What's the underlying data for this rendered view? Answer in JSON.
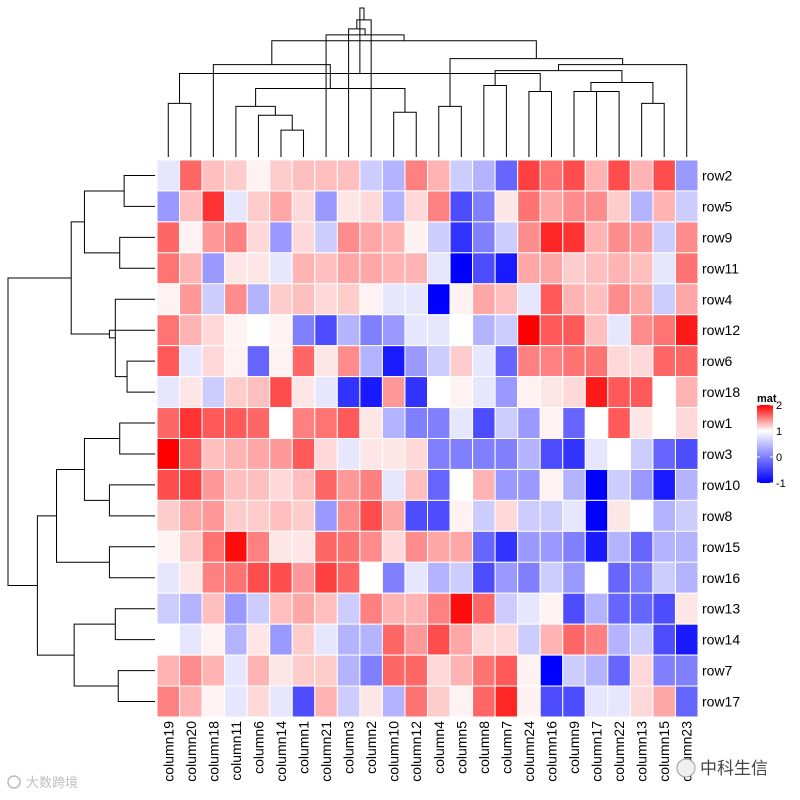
{
  "chart_data": {
    "type": "heatmap",
    "legend_title": "mat",
    "color_scale": {
      "low": -1,
      "mid": 0,
      "high": 2,
      "low_color": "#0000FF",
      "mid_color": "#FFFFFF",
      "high_color": "#FF0000",
      "ticks": [
        "2",
        "1",
        "0",
        "-1"
      ]
    },
    "columns": [
      "column19",
      "column20",
      "column18",
      "column11",
      "column6",
      "column14",
      "column1",
      "column21",
      "column3",
      "column2",
      "column10",
      "column12",
      "column4",
      "column5",
      "column8",
      "column7",
      "column24",
      "column16",
      "column9",
      "column17",
      "column22",
      "column13",
      "column15",
      "column23"
    ],
    "rows": [
      "row2",
      "row5",
      "row9",
      "row11",
      "row4",
      "row12",
      "row6",
      "row18",
      "row1",
      "row3",
      "row10",
      "row8",
      "row15",
      "row16",
      "row13",
      "row14",
      "row7",
      "row17"
    ],
    "values": [
      [
        -0.1,
        1.2,
        0.5,
        0.4,
        0.1,
        0.4,
        0.5,
        0.5,
        0.5,
        -0.2,
        -0.3,
        1.0,
        0.6,
        -0.2,
        -0.3,
        -0.6,
        1.5,
        1.1,
        1.4,
        0.6,
        1.4,
        0.6,
        1.4,
        -0.4
      ],
      [
        -0.4,
        0.5,
        1.6,
        -0.1,
        0.4,
        0.7,
        0.3,
        -0.4,
        0.2,
        0.3,
        -0.3,
        0.3,
        1.0,
        -0.7,
        -0.5,
        0.2,
        1.1,
        0.7,
        0.9,
        0.9,
        0.4,
        -0.3,
        0.6,
        -0.2
      ],
      [
        1.2,
        0.1,
        0.8,
        1.0,
        0.3,
        -0.4,
        0.3,
        -0.2,
        0.9,
        0.7,
        0.6,
        0.1,
        -0.2,
        -0.8,
        -0.5,
        -0.2,
        0.9,
        1.7,
        1.6,
        0.6,
        0.9,
        0.8,
        -0.2,
        0.9
      ],
      [
        1.1,
        0.6,
        -0.4,
        0.2,
        0.2,
        -0.1,
        0.6,
        0.5,
        0.7,
        0.7,
        0.6,
        0.6,
        -0.1,
        -1.0,
        -0.7,
        -0.9,
        0.7,
        0.7,
        0.4,
        0.5,
        0.6,
        0.5,
        -0.1,
        1.1
      ],
      [
        0.1,
        0.8,
        -0.2,
        0.9,
        -0.3,
        0.4,
        0.5,
        0.3,
        0.4,
        0.1,
        -0.1,
        -0.1,
        -1.0,
        0.1,
        0.7,
        0.5,
        -0.1,
        1.3,
        0.6,
        0.5,
        0.9,
        0.7,
        -0.2,
        0.7
      ],
      [
        1.1,
        0.6,
        0.3,
        0.1,
        0.0,
        0.1,
        -0.5,
        -0.7,
        -0.3,
        -0.5,
        -0.4,
        -0.1,
        -0.1,
        0.0,
        -0.3,
        -0.2,
        2.0,
        1.3,
        1.3,
        0.5,
        -0.1,
        0.9,
        1.1,
        1.8
      ],
      [
        1.3,
        -0.1,
        0.3,
        0.1,
        -0.6,
        0.1,
        1.2,
        0.2,
        0.9,
        -0.3,
        -0.9,
        -0.4,
        -0.2,
        0.4,
        -0.1,
        -0.6,
        1.0,
        1.0,
        1.1,
        1.1,
        0.3,
        0.3,
        1.2,
        1.2
      ],
      [
        -0.1,
        0.2,
        -0.2,
        0.4,
        0.5,
        1.4,
        0.2,
        -0.1,
        -0.8,
        -0.9,
        0.8,
        -0.8,
        0.0,
        0.1,
        -0.1,
        -0.4,
        0.1,
        0.2,
        0.3,
        1.8,
        1.3,
        1.3,
        0.0,
        0.6
      ],
      [
        1.2,
        1.6,
        1.3,
        1.3,
        1.2,
        0.0,
        1.0,
        1.1,
        1.3,
        0.2,
        -0.3,
        -0.5,
        -0.5,
        -0.1,
        -0.7,
        -0.2,
        -0.4,
        0.1,
        -0.6,
        0.0,
        1.3,
        0.2,
        0.0,
        0.3
      ],
      [
        2.0,
        1.3,
        0.5,
        0.6,
        0.7,
        0.8,
        1.3,
        0.3,
        -0.1,
        0.2,
        0.2,
        0.3,
        -0.5,
        -0.5,
        -0.5,
        -0.5,
        -0.3,
        -0.7,
        -0.8,
        -0.1,
        0.0,
        -0.2,
        -0.6,
        -0.7
      ],
      [
        1.4,
        1.5,
        0.8,
        0.5,
        0.5,
        0.3,
        0.5,
        1.2,
        0.8,
        1.0,
        -0.1,
        0.5,
        -0.6,
        0.0,
        0.6,
        -0.4,
        -0.4,
        0.1,
        -0.3,
        -1.0,
        -0.2,
        -0.4,
        -0.9,
        -0.3
      ],
      [
        0.4,
        0.7,
        0.8,
        0.4,
        0.4,
        0.5,
        0.4,
        -0.4,
        0.9,
        1.4,
        0.7,
        -0.7,
        -0.7,
        0.1,
        -0.2,
        0.3,
        -0.2,
        -0.2,
        -0.1,
        -1.0,
        0.2,
        0.0,
        -0.3,
        -0.2
      ],
      [
        0.1,
        0.4,
        1.1,
        1.9,
        1.0,
        0.2,
        0.2,
        1.2,
        1.1,
        0.9,
        0.3,
        0.9,
        0.7,
        0.7,
        -0.6,
        -0.8,
        -0.4,
        -0.4,
        -0.5,
        -0.9,
        -0.3,
        -0.6,
        -0.3,
        -0.3
      ],
      [
        -0.1,
        0.2,
        1.0,
        1.1,
        1.4,
        1.4,
        0.8,
        1.5,
        1.2,
        0.0,
        -0.5,
        -0.1,
        -0.3,
        -0.2,
        -0.7,
        -0.4,
        -0.5,
        -0.2,
        -0.4,
        0.0,
        -0.6,
        -0.5,
        -0.2,
        -0.3
      ],
      [
        -0.2,
        -0.3,
        0.5,
        -0.4,
        -0.2,
        0.5,
        0.7,
        0.5,
        -0.2,
        1.0,
        0.6,
        0.6,
        1.0,
        1.9,
        1.2,
        -0.2,
        -0.1,
        0.1,
        -0.7,
        -0.3,
        -0.6,
        -0.6,
        -0.7,
        0.2
      ],
      [
        0.0,
        -0.1,
        0.1,
        -0.3,
        0.2,
        -0.4,
        0.4,
        -0.1,
        -0.3,
        -0.3,
        1.2,
        0.8,
        1.4,
        0.7,
        0.3,
        0.3,
        -0.2,
        0.6,
        1.2,
        1.0,
        -0.3,
        -0.2,
        -0.7,
        -0.9
      ],
      [
        0.6,
        0.9,
        0.6,
        -0.1,
        0.6,
        0.2,
        0.4,
        0.4,
        -0.3,
        -0.5,
        1.2,
        1.2,
        0.3,
        0.6,
        1.1,
        1.3,
        0.1,
        -1.0,
        -0.2,
        -0.3,
        -0.6,
        0.3,
        -0.5,
        -0.5
      ],
      [
        1.0,
        0.6,
        0.1,
        -0.1,
        0.3,
        -0.1,
        -0.7,
        0.6,
        -0.2,
        0.2,
        -0.3,
        1.1,
        0.4,
        0.1,
        1.2,
        1.7,
        0.1,
        -0.7,
        -0.7,
        -0.1,
        -0.1,
        0.3,
        0.7,
        -0.6
      ]
    ],
    "col_dendrogram": [
      [
        -6,
        -7
      ],
      [
        -5,
        1
      ],
      [
        -11,
        -12
      ],
      [
        -4,
        2
      ],
      [
        -1,
        -2
      ],
      [
        4,
        3
      ],
      [
        -17,
        -18
      ],
      [
        5,
        7
      ],
      [
        -3,
        6
      ],
      [
        -13,
        -14
      ],
      [
        -15,
        -16
      ],
      [
        -22,
        -23
      ],
      [
        -20,
        -21
      ],
      [
        -19,
        13
      ],
      [
        12,
        14
      ],
      [
        11,
        15
      ],
      [
        -24,
        16
      ],
      [
        10,
        17
      ],
      [
        9,
        18
      ],
      [
        -8,
        19
      ],
      [
        -9,
        20
      ],
      [
        -10,
        21
      ],
      [
        8,
        22
      ]
    ],
    "row_dendrogram": [
      [
        -1,
        -2
      ],
      [
        -3,
        -4
      ],
      [
        -7,
        -8
      ],
      [
        -5,
        3
      ],
      [
        -6,
        4
      ],
      [
        1,
        2
      ],
      [
        6,
        5
      ],
      [
        -11,
        -12
      ],
      [
        -9,
        -10
      ],
      [
        -13,
        -14
      ],
      [
        9,
        8
      ],
      [
        -17,
        -18
      ],
      [
        -15,
        -16
      ],
      [
        13,
        12
      ],
      [
        11,
        10
      ],
      [
        14,
        15
      ],
      [
        7,
        16
      ]
    ],
    "col_heights": [
      0.18,
      0.28,
      0.3,
      0.34,
      0.36,
      0.46,
      0.44,
      0.56,
      0.62,
      0.34,
      0.48,
      0.36,
      0.44,
      0.44,
      0.5,
      0.58,
      0.62,
      0.66,
      0.78,
      0.82,
      0.86,
      0.92,
      1.0
    ],
    "row_heights": [
      0.21,
      0.24,
      0.19,
      0.27,
      0.31,
      0.48,
      0.57,
      0.31,
      0.24,
      0.31,
      0.48,
      0.25,
      0.27,
      0.55,
      0.67,
      0.8,
      1.0
    ]
  },
  "watermark": {
    "left_text": "大数跨境",
    "right_text": "中科生信"
  },
  "colors": {
    "grid": "#FFFFFF",
    "dendrogram": "#000000"
  }
}
